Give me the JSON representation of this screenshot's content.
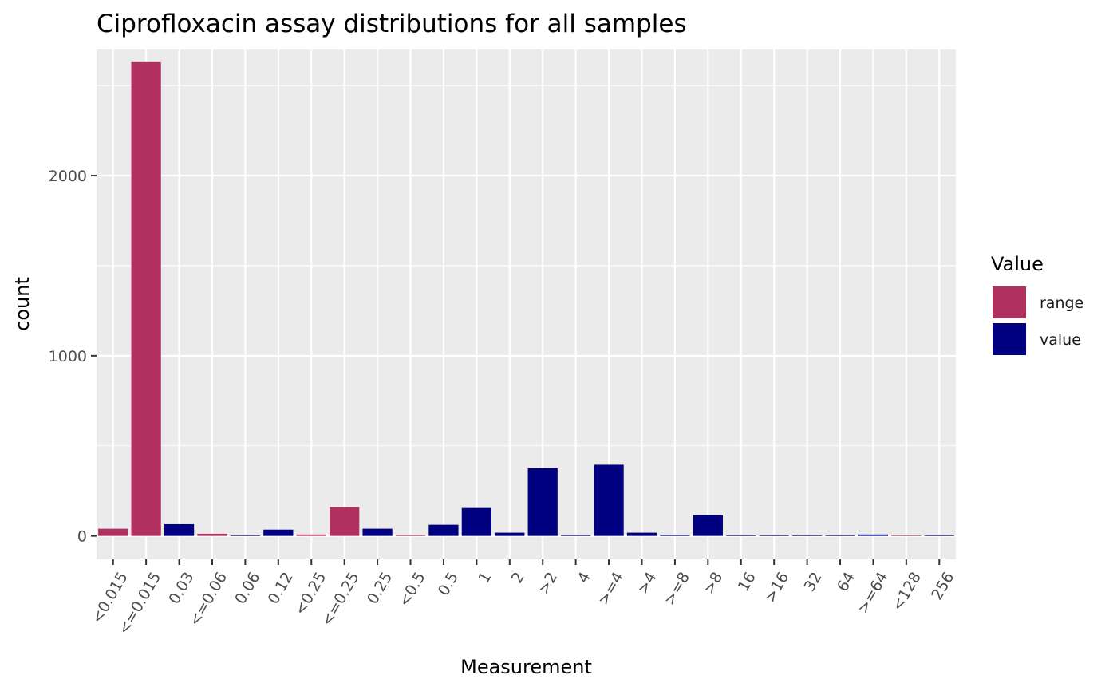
{
  "chart_data": {
    "type": "bar",
    "title": "Ciprofloxacin assay distributions for all samples",
    "xlabel": "Measurement",
    "ylabel": "count",
    "ylim": [
      -130,
      2700
    ],
    "yticks": [
      0,
      1000,
      2000
    ],
    "grid": true,
    "legend_placement": "right",
    "legend_title": "Value",
    "legend": [
      {
        "name": "range",
        "color": "#B03060"
      },
      {
        "name": "value",
        "color": "#000080"
      }
    ],
    "categories": [
      "<0.015",
      "<=0.015",
      "0.03",
      "<=0.06",
      "0.06",
      "0.12",
      "<0.25",
      "<=0.25",
      "0.25",
      "<0.5",
      "0.5",
      "1",
      "2",
      ">2",
      "4",
      ">=4",
      ">4",
      ">=8",
      ">8",
      "16",
      ">16",
      "32",
      "64",
      ">=64",
      "<128",
      "256"
    ],
    "values": [
      40,
      2630,
      65,
      12,
      3,
      35,
      8,
      160,
      40,
      4,
      62,
      155,
      18,
      375,
      4,
      395,
      18,
      5,
      115,
      3,
      3,
      3,
      3,
      8,
      3,
      3
    ],
    "groups": [
      "range",
      "range",
      "value",
      "range",
      "value",
      "value",
      "range",
      "range",
      "value",
      "range",
      "value",
      "value",
      "value",
      "value",
      "value",
      "value",
      "value",
      "value",
      "value",
      "value",
      "value",
      "value",
      "value",
      "value",
      "range",
      "value"
    ]
  }
}
